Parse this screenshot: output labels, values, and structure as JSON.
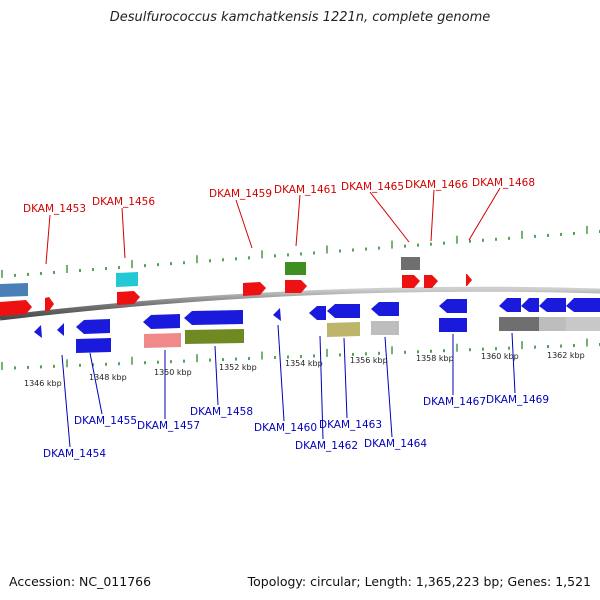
{
  "title": "Desulfurococcus kamchatkensis 1221n, complete genome",
  "footer": {
    "accession": "Accession: NC_011766",
    "summary": "Topology: circular; Length: 1,365,223 bp; Genes: 1,521"
  },
  "colors": {
    "red": "#ee1111",
    "blue": "#1a1adc",
    "cyan": "#22c8d4",
    "green": "#3e8e22",
    "olive": "#6f8a22",
    "salmon": "#f08a8a",
    "khaki": "#bdb56a",
    "dark_gray": "#6f6f6f",
    "light_gray": "#bdbdbd",
    "steel_blue": "#4a7fb8",
    "top_label": "#d40000",
    "bottom_label": "#0000bb",
    "tick": "#2a8a2a",
    "backbone": "#8a8a8a"
  },
  "ticks": [
    {
      "label": "1346 kbp"
    },
    {
      "label": "1348 kbp"
    },
    {
      "label": "1350 kbp"
    },
    {
      "label": "1352 kbp"
    },
    {
      "label": "1354 kbp"
    },
    {
      "label": "1356 kbp"
    },
    {
      "label": "1358 kbp"
    },
    {
      "label": "1360 kbp"
    },
    {
      "label": "1362 kbp"
    }
  ],
  "top_labels": [
    {
      "text": "DKAM_1453"
    },
    {
      "text": "DKAM_1456"
    },
    {
      "text": "DKAM_1459"
    },
    {
      "text": "DKAM_1461"
    },
    {
      "text": "DKAM_1465"
    },
    {
      "text": "DKAM_1466"
    },
    {
      "text": "DKAM_1468"
    }
  ],
  "bottom_labels": [
    {
      "text": "DKAM_1454"
    },
    {
      "text": "DKAM_1455"
    },
    {
      "text": "DKAM_1457"
    },
    {
      "text": "DKAM_1458"
    },
    {
      "text": "DKAM_1460"
    },
    {
      "text": "DKAM_1462"
    },
    {
      "text": "DKAM_1463"
    },
    {
      "text": "DKAM_1464"
    },
    {
      "text": "DKAM_1467"
    },
    {
      "text": "DKAM_1469"
    }
  ]
}
